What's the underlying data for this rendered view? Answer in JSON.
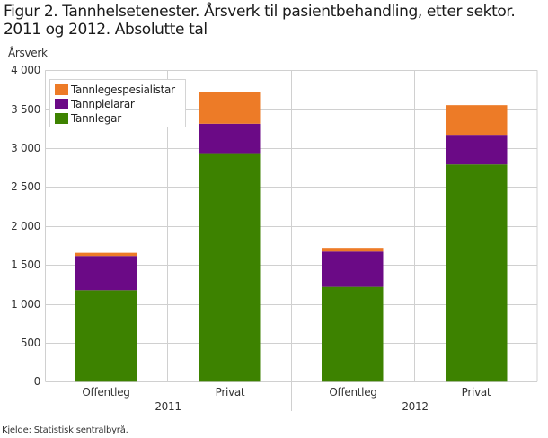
{
  "title": "Figur 2. Tannhelsetenester. Årsverk til pasientbehandling, etter sektor. 2011 og 2012. Absolutte tal",
  "source": "Kjelde: Statistisk sentralbyrå.",
  "colors": {
    "Tannlegespesialistar": "#ED7B27",
    "Tannpleiarar": "#6B0A86",
    "Tannlegar": "#3D8200",
    "grid": "#d0d0d0"
  },
  "chart_data": {
    "type": "bar",
    "stacked": true,
    "title": "Figur 2. Tannhelsetenester. Årsverk til pasientbehandling, etter sektor. 2011 og 2012. Absolutte tal",
    "xlabel": "",
    "ylabel": "Årsverk",
    "ylim": [
      0,
      4000
    ],
    "yticks": [
      0,
      500,
      1000,
      1500,
      2000,
      2500,
      3000,
      3500,
      4000
    ],
    "ytick_labels": [
      "0",
      "500",
      "1 000",
      "1 500",
      "2 000",
      "2 500",
      "3 000",
      "3 500",
      "4 000"
    ],
    "groups": [
      "2011",
      "2012"
    ],
    "categories": [
      "2011 Offentleg",
      "2011 Privat",
      "2012 Offentleg",
      "2012 Privat"
    ],
    "category_labels": [
      "Offentleg",
      "Privat",
      "Offentleg",
      "Privat"
    ],
    "series": [
      {
        "name": "Tannlegar",
        "color": "#3D8200",
        "values": [
          1176,
          2925,
          1218,
          2791
        ]
      },
      {
        "name": "Tannpleiarar",
        "color": "#6B0A86",
        "values": [
          439,
          389,
          454,
          381
        ]
      },
      {
        "name": "Tannlegespesialistar",
        "color": "#ED7B27",
        "values": [
          41,
          411,
          47,
          380
        ]
      }
    ],
    "legend": {
      "position": "top-left inside",
      "entries": [
        "Tannlegespesialistar",
        "Tannpleiarar",
        "Tannlegar"
      ]
    },
    "grid": true
  }
}
